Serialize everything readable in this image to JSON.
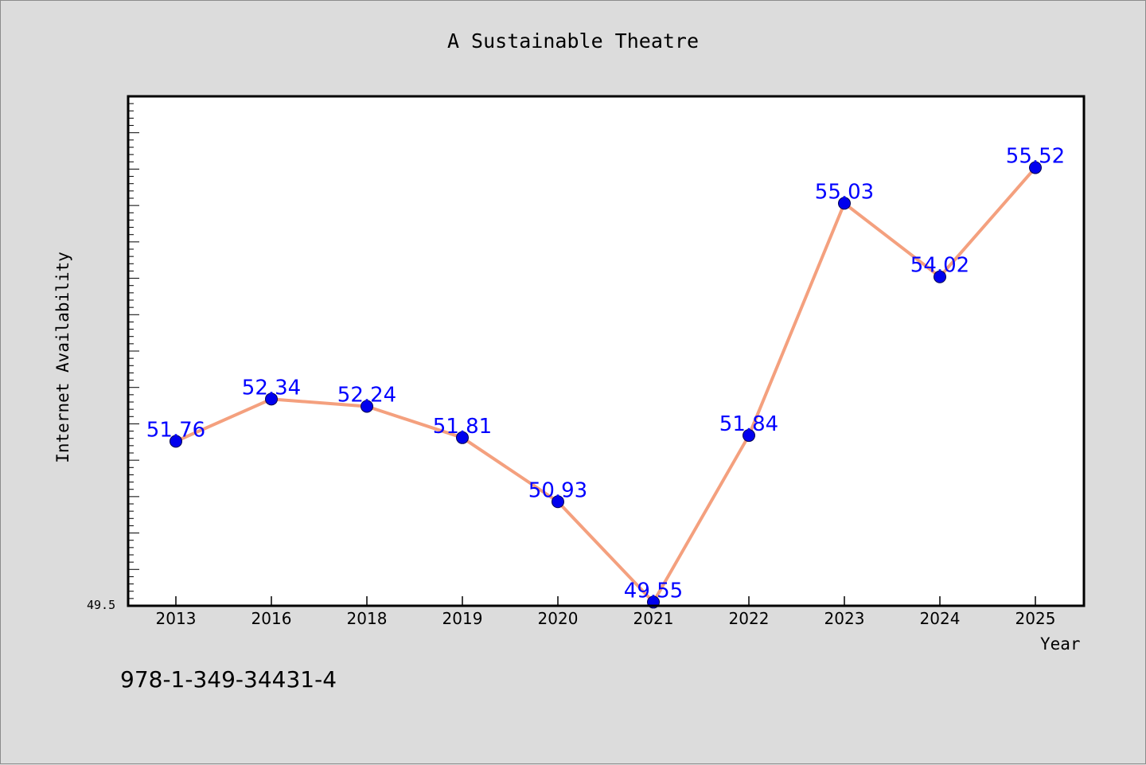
{
  "chart_data": {
    "type": "line",
    "title": "A Sustainable Theatre",
    "xlabel": "Year",
    "ylabel": "Internet Availability",
    "categories": [
      "2013",
      "2016",
      "2018",
      "2019",
      "2020",
      "2021",
      "2022",
      "2023",
      "2024",
      "2025"
    ],
    "series": [
      {
        "values": [
          51.76,
          52.34,
          52.24,
          51.81,
          50.93,
          49.55,
          51.84,
          55.03,
          54.02,
          55.52
        ]
      }
    ],
    "data_labels": [
      "51.76",
      "52.34",
      "52.24",
      "51.81",
      "50.93",
      "49.55",
      "51.84",
      "55.03",
      "54.02",
      "55.52"
    ],
    "ylim": [
      49.5,
      56.5
    ],
    "ytick_label": "49.5",
    "grid": false,
    "colors": {
      "line": "#f4a07e",
      "marker": "#0000ee",
      "label": "#0000ff",
      "background": "#dcdcdc",
      "plot_bg": "#ffffff"
    }
  },
  "footnote": "978-1-349-34431-4"
}
